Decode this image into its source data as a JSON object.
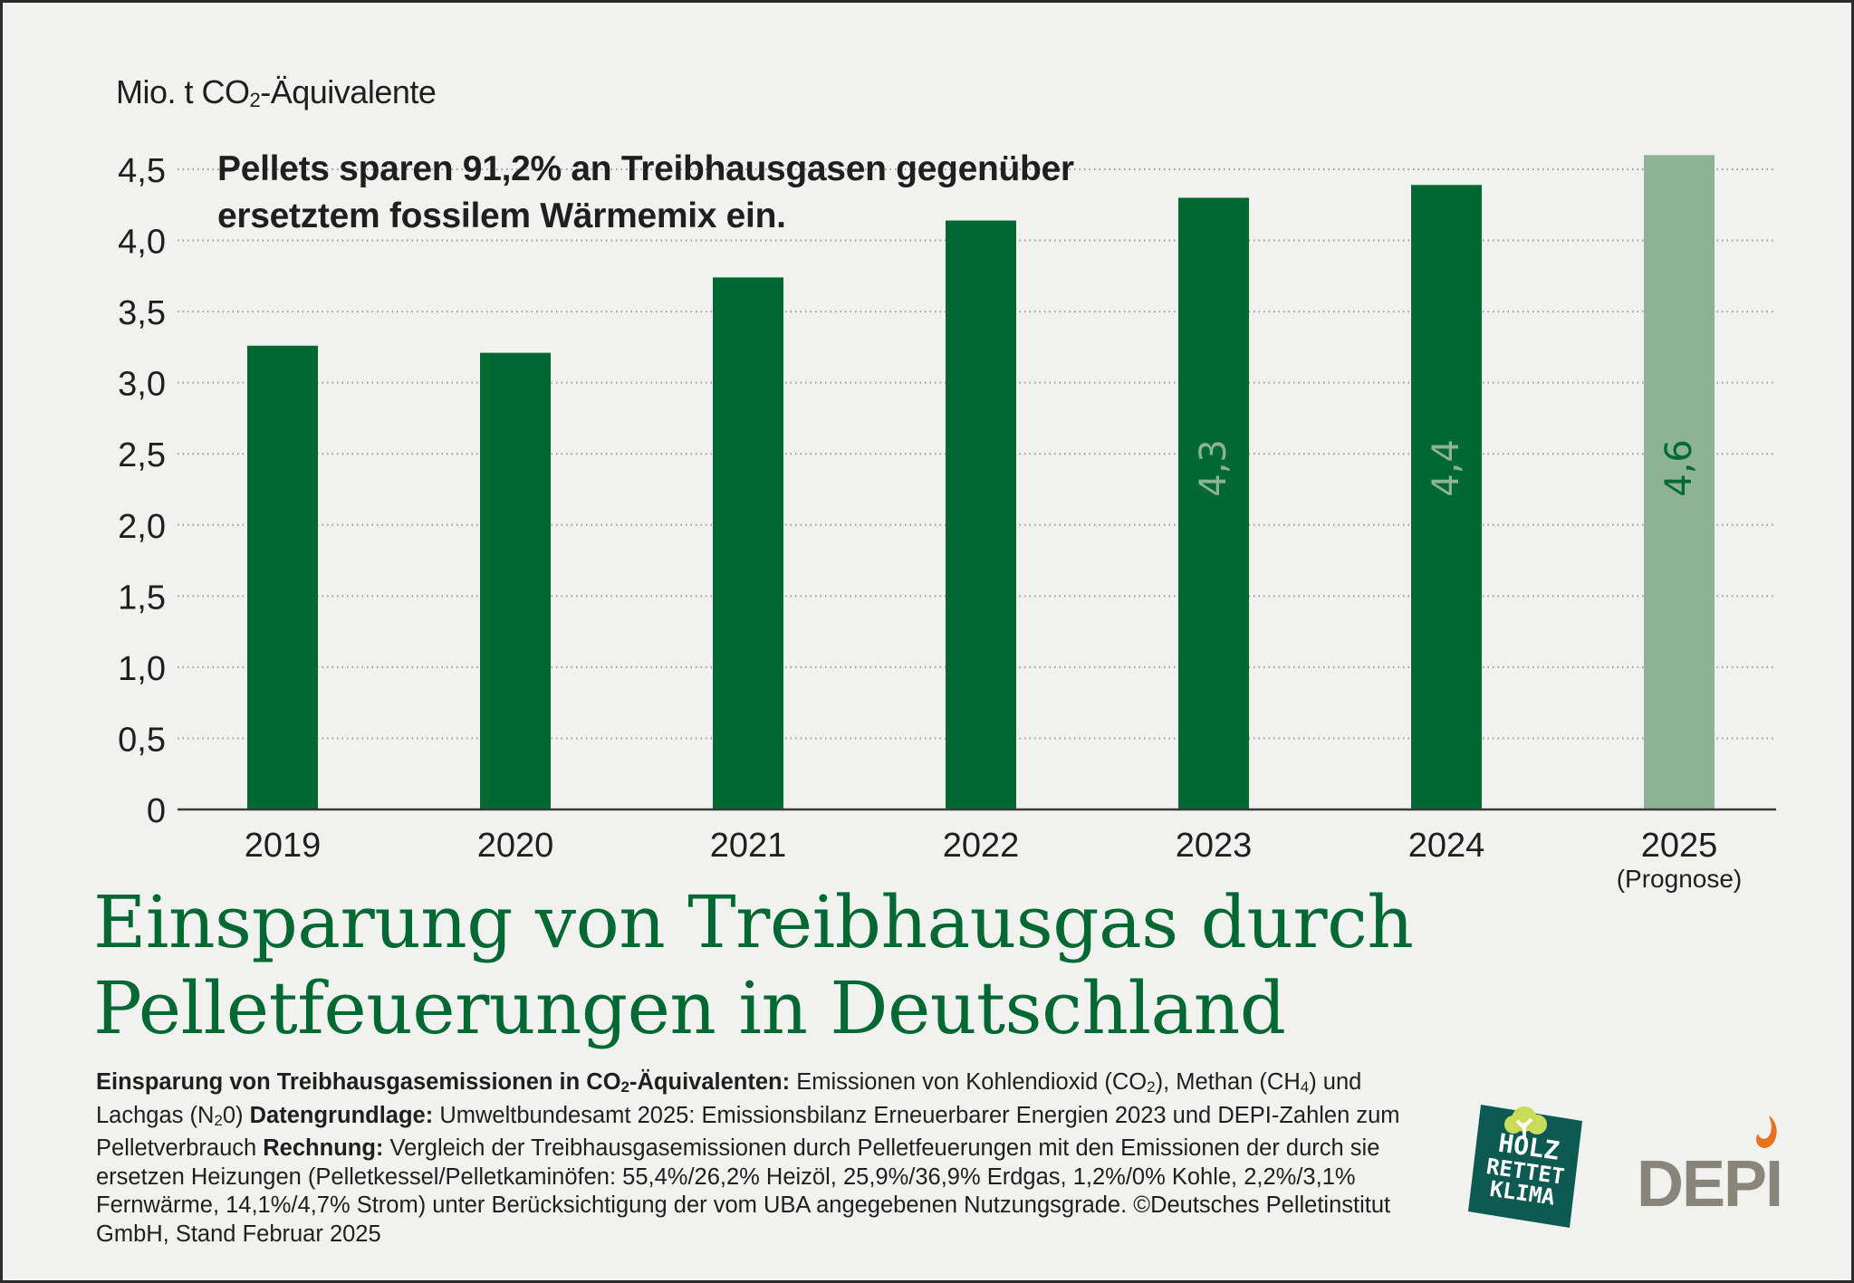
{
  "chart_data": {
    "type": "bar",
    "title": "Einsparung von Treibhausgas durch Pelletfeuerungen in Deutschland",
    "title_lines": [
      "Einsparung von Treibhausgas durch",
      "Pelletfeuerungen in Deutschland"
    ],
    "headline_lines": [
      "Pellets sparen 91,2% an Treibhausgasen gegenüber",
      "ersetztem fossilem Wärmemix ein."
    ],
    "ylabel_prefix": "Mio. t CO",
    "ylabel_sub": "2",
    "ylabel_suffix": "-Äquivalente",
    "xlabel": "",
    "ylim": [
      0,
      4.5
    ],
    "yticks": [
      {
        "value": 0,
        "label": "0"
      },
      {
        "value": 0.5,
        "label": "0,5"
      },
      {
        "value": 1.0,
        "label": "1,0"
      },
      {
        "value": 1.5,
        "label": "1,5"
      },
      {
        "value": 2.0,
        "label": "2,0"
      },
      {
        "value": 2.5,
        "label": "2,5"
      },
      {
        "value": 3.0,
        "label": "3,0"
      },
      {
        "value": 3.5,
        "label": "3,5"
      },
      {
        "value": 4.0,
        "label": "4,0"
      },
      {
        "value": 4.5,
        "label": "4,5"
      }
    ],
    "grid": true,
    "categories": [
      "2019",
      "2020",
      "2021",
      "2022",
      "2023",
      "2024",
      "2025"
    ],
    "category_sublabels": [
      "",
      "",
      "",
      "",
      "",
      "",
      "(Prognose)"
    ],
    "values": [
      3.26,
      3.21,
      3.74,
      4.14,
      4.3,
      4.39,
      4.6
    ],
    "data_labels": [
      "",
      "",
      "",
      "",
      "4,3",
      "4,4",
      "4,6"
    ],
    "forecast": [
      false,
      false,
      false,
      false,
      false,
      false,
      true
    ],
    "colors": {
      "bar": "#006833",
      "bar_forecast": "#8db394",
      "label_on_bar": "#8db394",
      "label_on_forecast": "#006833",
      "title": "#006833",
      "grid": "#9a9a9a",
      "axis": "#3a3a3a"
    }
  },
  "notes": {
    "segments": [
      {
        "bold": true,
        "text": "Einsparung von Treibhausgasemissionen in CO"
      },
      {
        "bold": true,
        "sub": "2"
      },
      {
        "bold": true,
        "text": "-Äquivalenten:"
      },
      {
        "bold": false,
        "text": " Emissionen von Kohlendioxid (CO"
      },
      {
        "bold": false,
        "sub": "2"
      },
      {
        "bold": false,
        "text": "), Methan (CH"
      },
      {
        "bold": false,
        "sub": "4"
      },
      {
        "bold": false,
        "text": ") und Lachgas (N"
      },
      {
        "bold": false,
        "sub": "2"
      },
      {
        "bold": false,
        "text": "0) "
      },
      {
        "bold": true,
        "text": "Datengrundlage:"
      },
      {
        "bold": false,
        "text": " Umweltbundesamt 2025: Emissionsbilanz Erneuerbarer Energien 2023 und DEPI-Zahlen zum Pelletverbrauch "
      },
      {
        "bold": true,
        "text": "Rechnung:"
      },
      {
        "bold": false,
        "text": " Vergleich der Treibhausgasemissionen durch Pelletfeuerungen mit den Emissionen der durch sie ersetzen Heizungen (Pelletkessel/Pelletkaminöfen: 55,4%/26,2% Heizöl, 25,9%/36,9% Erdgas, 1,2%/0% Kohle, 2,2%/3,1% Fernwärme, 14,1%/4,7% Strom) unter Berücksichtigung der vom UBA angegebenen Nutzungsgrade. ©Deutsches Pelletinstitut GmbH, Stand Februar 2025"
      }
    ]
  },
  "logos": {
    "holz": {
      "lines": [
        "HOLZ",
        "RETTET",
        "KLIMA"
      ],
      "bg": "#0d5a52",
      "tree": "#c9dc5a"
    },
    "depi": {
      "text": "DEPI",
      "color": "#8a857b",
      "flame": "#e8731e"
    }
  }
}
